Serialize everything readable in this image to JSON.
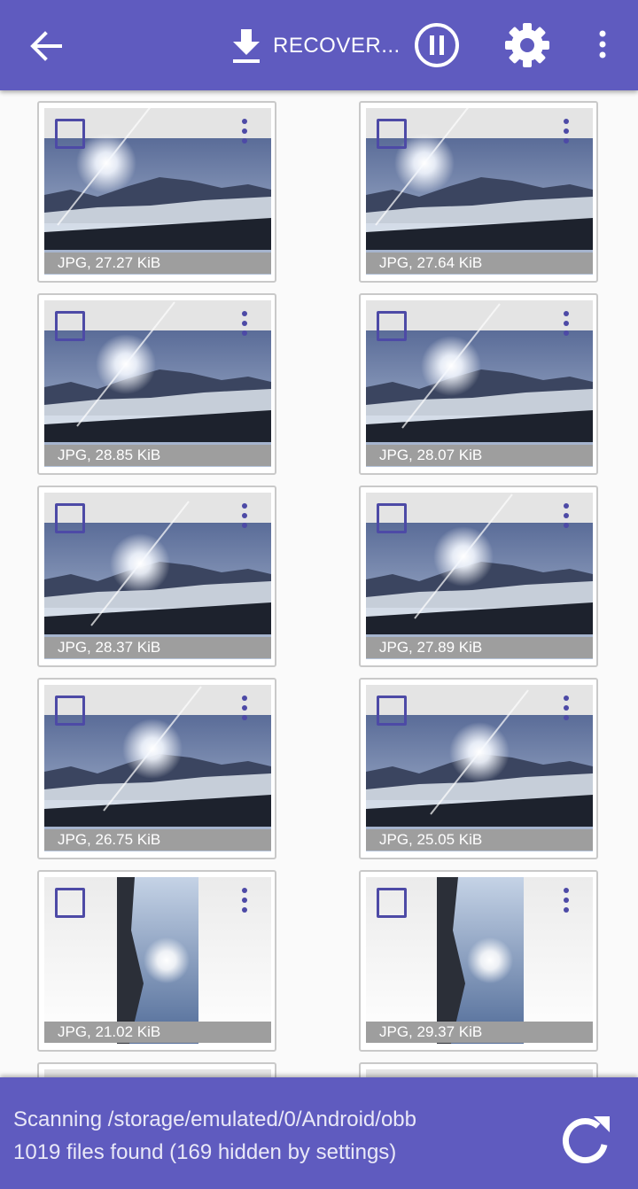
{
  "toolbar": {
    "back_icon": "arrow-back-icon",
    "recover_icon": "download-icon",
    "recover_label": "RECOVER...",
    "pause_icon": "pause-circle-icon",
    "settings_icon": "gear-icon",
    "more_icon": "more-vertical-icon"
  },
  "files": [
    {
      "caption": "JPG, 27.27 KiB",
      "orientation": "landscape"
    },
    {
      "caption": "JPG, 27.64 KiB",
      "orientation": "landscape"
    },
    {
      "caption": "JPG, 28.85 KiB",
      "orientation": "landscape"
    },
    {
      "caption": "JPG, 28.07 KiB",
      "orientation": "landscape"
    },
    {
      "caption": "JPG, 28.37 KiB",
      "orientation": "landscape"
    },
    {
      "caption": "JPG, 27.89 KiB",
      "orientation": "landscape"
    },
    {
      "caption": "JPG, 26.75 KiB",
      "orientation": "landscape"
    },
    {
      "caption": "JPG, 25.05 KiB",
      "orientation": "landscape"
    },
    {
      "caption": "JPG, 21.02 KiB",
      "orientation": "portrait"
    },
    {
      "caption": "JPG, 29.37 KiB",
      "orientation": "portrait"
    }
  ],
  "status": {
    "scanning": "Scanning /storage/emulated/0/Android/obb",
    "found": "1019 files found (169 hidden by settings)",
    "refresh_icon": "refresh-icon"
  },
  "colors": {
    "accent": "#5f5bbf",
    "checkbox": "#4d4aa6",
    "caption_bg": "#9e9e9e"
  }
}
